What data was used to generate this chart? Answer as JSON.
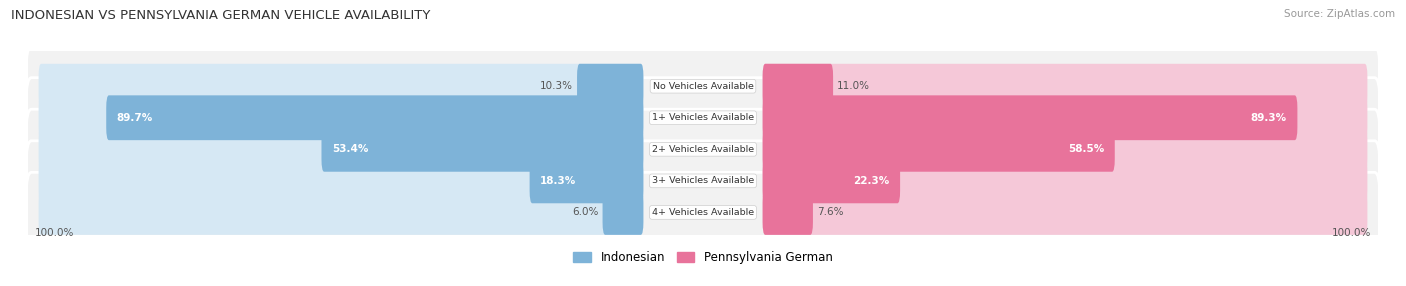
{
  "title": "INDONESIAN VS PENNSYLVANIA GERMAN VEHICLE AVAILABILITY",
  "source": "Source: ZipAtlas.com",
  "categories": [
    "No Vehicles Available",
    "1+ Vehicles Available",
    "2+ Vehicles Available",
    "3+ Vehicles Available",
    "4+ Vehicles Available"
  ],
  "indonesian": [
    10.3,
    89.7,
    53.4,
    18.3,
    6.0
  ],
  "pennsylvania_german": [
    11.0,
    89.3,
    58.5,
    22.3,
    7.6
  ],
  "max_value": 100.0,
  "color_indonesian": "#7eb3d8",
  "color_penn_german": "#e8739b",
  "bg_color_indonesian": "#d6e8f4",
  "bg_color_penn_german": "#f5c8d8",
  "row_bg_even": "#f2f2f2",
  "row_bg_odd": "#ebebeb",
  "label_color_dark": "#555555",
  "label_color_white": "#ffffff",
  "title_color": "#333333",
  "source_color": "#999999",
  "figsize": [
    14.06,
    2.86
  ],
  "dpi": 100
}
